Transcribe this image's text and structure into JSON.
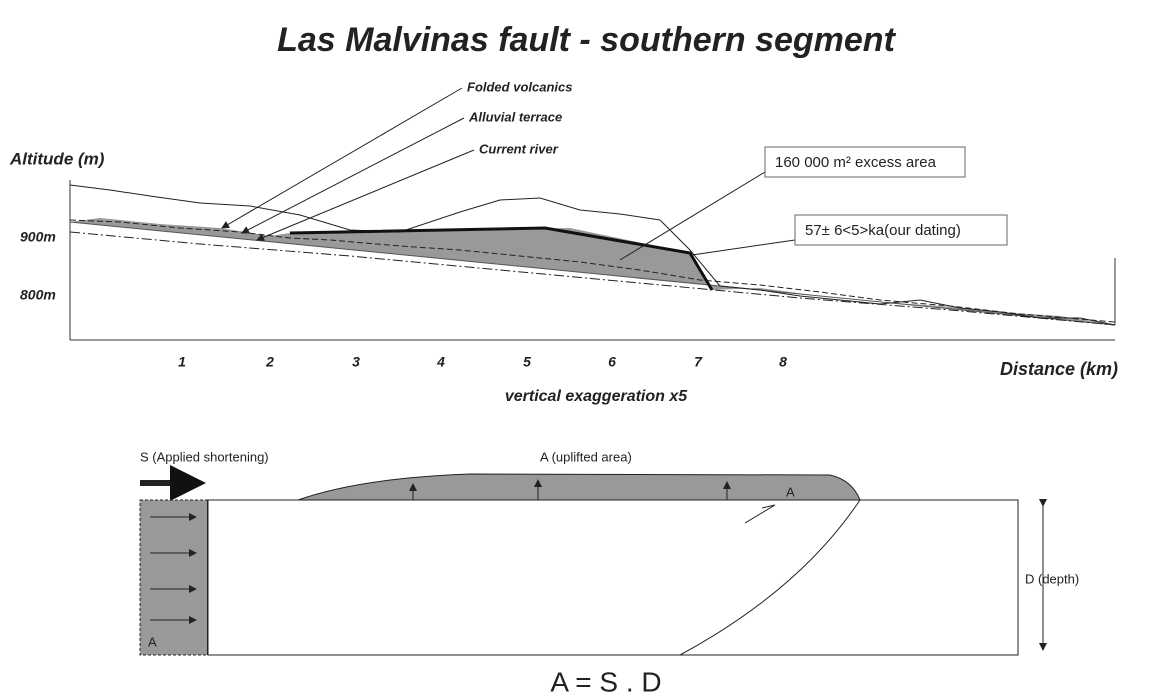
{
  "title": "Las Malvinas fault - southern segment",
  "profile": {
    "y_label": "Altitude (m)",
    "x_label": "Distance (km)",
    "y_ticks": [
      "900m",
      "800m"
    ],
    "x_ticks": [
      "1",
      "2",
      "3",
      "4",
      "5",
      "6",
      "7",
      "8"
    ],
    "note": "vertical exaggeration x5",
    "annotations": [
      "Folded volcanics",
      "Alluvial terrace",
      "Current river"
    ],
    "callouts": [
      "160 000 m² excess area",
      "57± 6<5>ka(our dating)"
    ]
  },
  "model": {
    "shortening": "S (Applied shortening)",
    "uplift": "A (uplifted area)",
    "depth": "D (depth)",
    "area_labels": [
      "A",
      "A"
    ],
    "equation": "A = S . D"
  }
}
